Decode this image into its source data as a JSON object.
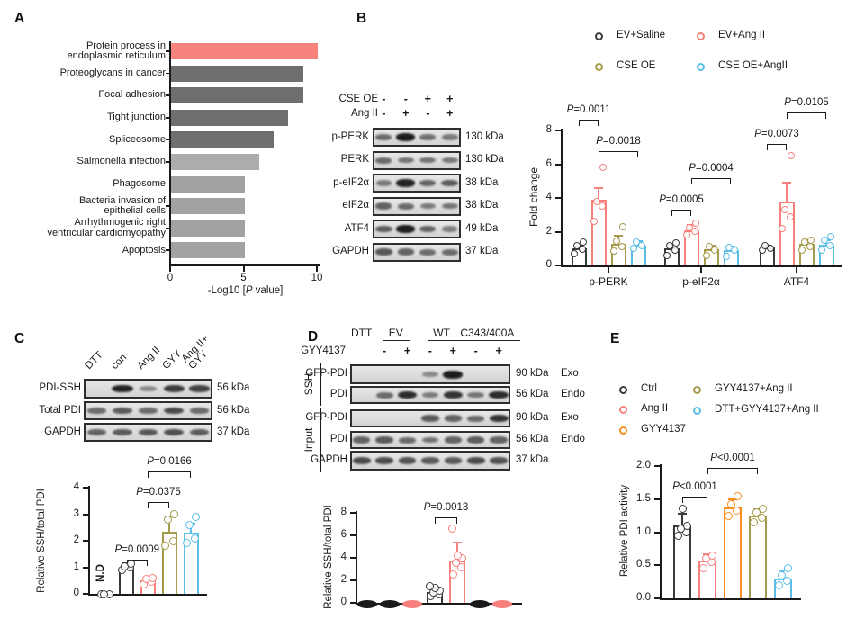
{
  "colors": {
    "black": "#3A3A3A",
    "salmon": "#F8807C",
    "olive": "#A69B4D",
    "blue": "#5ABEE5",
    "orange": "#F78E20",
    "axis": "#1a1a1a",
    "pathway_highlight": "#F8837C",
    "pathway_dark_gray": "#6F6F6F",
    "pathway_light_gray": "#A6A6A6"
  },
  "panel_a": {
    "letter": "A",
    "chart_data": {
      "type": "bar",
      "orientation": "horizontal",
      "title": "",
      "xlabel": "-Log10 [P value]",
      "xticks": [
        0,
        5,
        10
      ],
      "xlim": [
        0,
        10
      ],
      "grid": false,
      "categories": [
        "Protein process in\nendoplasmic reticulum",
        "Proteoglycans in cancer",
        "Focal adhesion",
        "Tight junction",
        "Spliceosome",
        "Salmonella infection",
        "Phagosome",
        "Bacteria invasion of\nepithelial cells",
        "Arrhythmogenic right\nventricular cardiomyopathy",
        "Apoptosis"
      ],
      "values": [
        10,
        9,
        9,
        8,
        7,
        6,
        5,
        5,
        5,
        5
      ],
      "bar_colors": [
        "#F8837C",
        "#6F6F6F",
        "#6F6F6F",
        "#6F6F6F",
        "#6F6F6F",
        "#ACACAC",
        "#A2A2A2",
        "#A2A2A2",
        "#A2A2A2",
        "#A2A2A2"
      ]
    }
  },
  "panel_b": {
    "letter": "B",
    "blot": {
      "treatments": [
        {
          "label": "CSE OE",
          "symbols": [
            "-",
            "-",
            "+",
            "+"
          ]
        },
        {
          "label": "Ang II",
          "symbols": [
            "-",
            "+",
            "-",
            "+"
          ]
        }
      ],
      "rows": [
        {
          "label": "p-PERK",
          "kda": "130 kDa",
          "bands": [
            0.5,
            1,
            0.45,
            0.4
          ]
        },
        {
          "label": "PERK",
          "kda": "130 kDa",
          "bands": [
            0.5,
            0.45,
            0.45,
            0.42
          ]
        },
        {
          "label": "p-eIF2α",
          "kda": "38 kDa",
          "bands": [
            0.4,
            0.95,
            0.55,
            0.6
          ]
        },
        {
          "label": "eIF2α",
          "kda": "38 kDa",
          "bands": [
            0.55,
            0.5,
            0.42,
            0.45
          ]
        },
        {
          "label": "ATF4",
          "kda": "49 kDa",
          "bands": [
            0.6,
            1,
            0.55,
            0.38
          ]
        },
        {
          "label": "GAPDH",
          "kda": "37 kDa",
          "bands": [
            0.62,
            0.55,
            0.5,
            0.5
          ]
        }
      ]
    },
    "legend": [
      {
        "label": "EV+Saline",
        "color": "#3A3A3A"
      },
      {
        "label": "EV+Ang II",
        "color": "#F8807C"
      },
      {
        "label": "CSE OE",
        "color": "#A69B4D"
      },
      {
        "label": "CSE OE+AngII",
        "color": "#5ABEE5"
      }
    ],
    "chart_data": {
      "type": "grouped_bar",
      "ylabel": "Fold change",
      "yticks": [
        0,
        2,
        4,
        6,
        8
      ],
      "ylim": [
        0,
        8
      ],
      "grid": false,
      "legend_position": "top-right",
      "categories": [
        "p-PERK",
        "p-eIF2α",
        "ATF4"
      ],
      "series": [
        {
          "name": "EV+Saline",
          "color": "#3A3A3A",
          "values": [
            1.0,
            1.0,
            1.05
          ],
          "errors": [
            0.2,
            0.25,
            0.1
          ],
          "scatter": [
            [
              0.7,
              0.95,
              1.15,
              1.4
            ],
            [
              0.6,
              0.9,
              1.15,
              1.35
            ],
            [
              0.9,
              1.0,
              1.15
            ]
          ]
        },
        {
          "name": "EV+Ang II",
          "color": "#F8807C",
          "values": [
            3.9,
            2.1,
            3.8
          ],
          "errors": [
            0.7,
            0.3,
            1.1
          ],
          "scatter": [
            [
              2.6,
              3.5,
              3.8,
              5.8
            ],
            [
              1.8,
              2.05,
              2.25,
              2.5
            ],
            [
              2.2,
              2.9,
              3.3,
              6.5
            ]
          ]
        },
        {
          "name": "CSE OE",
          "color": "#A69B4D",
          "values": [
            1.3,
            0.95,
            1.3
          ],
          "errors": [
            0.45,
            0.25,
            0.2
          ],
          "scatter": [
            [
              0.85,
              1.1,
              1.45,
              2.3
            ],
            [
              0.6,
              0.9,
              1.1
            ],
            [
              0.9,
              1.1,
              1.4,
              1.5
            ]
          ]
        },
        {
          "name": "CSE OE+AngII",
          "color": "#5ABEE5",
          "values": [
            1.2,
            0.9,
            1.25
          ],
          "errors": [
            0.25,
            0.2,
            0.25
          ],
          "scatter": [
            [
              1.0,
              1.2,
              1.4
            ],
            [
              0.55,
              0.9,
              1.05
            ],
            [
              0.9,
              1.2,
              1.5,
              1.7
            ]
          ]
        }
      ],
      "pvalues": [
        {
          "label": "P=0.0011",
          "cat": 0,
          "from": 0,
          "to": 1
        },
        {
          "label": "P=0.0018",
          "cat": 0,
          "from": 1,
          "to": 3
        },
        {
          "label": "P=0.0005",
          "cat": 1,
          "from": 0,
          "to": 1
        },
        {
          "label": "P=0.0004",
          "cat": 1,
          "from": 1,
          "to": 3
        },
        {
          "label": "P=0.0073",
          "cat": 2,
          "from": 0,
          "to": 1
        },
        {
          "label": "P=0.0105",
          "cat": 2,
          "from": 1,
          "to": 3
        }
      ]
    }
  },
  "panel_c": {
    "letter": "C",
    "blot": {
      "lane_labels": [
        "DTT",
        "con",
        "Ang II",
        "GYY",
        "Ang II+\nGYY"
      ],
      "rows": [
        {
          "label": "PDI-SSH",
          "kda": "56 kDa",
          "bands": [
            0,
            0.95,
            0.3,
            0.8,
            0.75
          ]
        },
        {
          "label": "Total PDI",
          "kda": "56 kDa",
          "bands": [
            0.5,
            0.6,
            0.5,
            0.72,
            0.5
          ]
        },
        {
          "label": "GAPDH",
          "kda": "37 kDa",
          "bands": [
            0.55,
            0.6,
            0.62,
            0.68,
            0.6
          ]
        }
      ]
    },
    "chart_data": {
      "type": "bar",
      "ylabel": "Relative SSH/total PDI",
      "yticks": [
        0,
        1,
        2,
        3,
        4
      ],
      "ylim": [
        0,
        4
      ],
      "grid": false,
      "categories": [
        "DTT",
        "con",
        "Ang II",
        "GYY",
        "Ang II+GYY"
      ],
      "values": [
        0,
        1.0,
        0.5,
        2.35,
        2.3
      ],
      "errors": [
        0,
        0.15,
        0.1,
        0.55,
        0.35
      ],
      "bar_colors": [
        "#3A3A3A",
        "#3A3A3A",
        "#F8807C",
        "#A69B4D",
        "#5ABEE5"
      ],
      "scatter": [
        [
          0,
          0,
          0
        ],
        [
          0.9,
          1.0,
          1.05,
          1.15
        ],
        [
          0.35,
          0.45,
          0.55,
          0.6
        ],
        [
          1.8,
          2.0,
          2.8,
          3.0
        ],
        [
          1.9,
          2.1,
          2.6,
          2.9
        ]
      ],
      "annotations": [
        {
          "text": "N.D",
          "bar": 0
        }
      ],
      "pvalues": [
        {
          "label": "P=0.0009",
          "from": 1,
          "to": 2
        },
        {
          "label": "P=0.0375",
          "from": 2,
          "to": 3
        },
        {
          "label": "P=0.0166",
          "from": 2,
          "to": 4
        }
      ]
    }
  },
  "panel_d": {
    "letter": "D",
    "blot": {
      "group_headers": [
        {
          "label": "DTT",
          "underline": false
        },
        {
          "label": "EV",
          "underline": true
        },
        {
          "label": "WT",
          "underline": true
        },
        {
          "label": "C343/400A",
          "underline": true
        }
      ],
      "treatment": {
        "label": "GYY4137",
        "symbols": [
          "-",
          "+",
          "-",
          "+",
          "-",
          "+"
        ]
      },
      "side_groups": [
        {
          "label": "SSH",
          "rows": [
            0,
            1
          ]
        },
        {
          "label": "Input",
          "rows": [
            2,
            3,
            4
          ]
        }
      ],
      "rows": [
        {
          "label": "GFP-PDI",
          "kda": "90 kDa",
          "tag": "Exo",
          "bands": [
            0,
            0,
            0,
            0.3,
            1,
            0,
            0
          ]
        },
        {
          "label": "PDI",
          "kda": "56 kDa",
          "tag": "Endo",
          "bands": [
            0,
            0.5,
            0.9,
            0.4,
            0.85,
            0.45,
            0.9
          ]
        },
        {
          "label": "GFP-PDI",
          "kda": "90 kDa",
          "tag": "Exo",
          "bands": [
            0,
            0,
            0,
            0.6,
            0.55,
            0.5,
            0.85
          ]
        },
        {
          "label": "PDI",
          "kda": "56 kDa",
          "tag": "Endo",
          "bands": [
            0.55,
            0.6,
            0.5,
            0.45,
            0.55,
            0.6,
            0.55
          ]
        },
        {
          "label": "GAPDH",
          "kda": "37 kDa",
          "tag": "",
          "bands": [
            0.7,
            0.7,
            0.65,
            0.6,
            0.6,
            0.7,
            0.65
          ]
        }
      ]
    },
    "chart_data": {
      "type": "bar",
      "ylabel": "Relative SSH/total PDI",
      "yticks": [
        0,
        2,
        4,
        6,
        8
      ],
      "ylim": [
        0,
        8
      ],
      "grid": false,
      "categories": [
        "DTT",
        "EV -GYY4137",
        "EV +GYY4137",
        "WT -GYY4137",
        "WT +GYY4137",
        "C343/400A -GYY4137",
        "C343/400A +GYY4137"
      ],
      "values": [
        0,
        0,
        0,
        1.0,
        3.8,
        0,
        0
      ],
      "errors": [
        0,
        0,
        0,
        0.4,
        1.6,
        0,
        0
      ],
      "bar_colors": [
        "#1a1a1a",
        "#1a1a1a",
        "#F8807C",
        "#3A3A3A",
        "#F8807C",
        "#1a1a1a",
        "#F8807C"
      ],
      "zero_marker": [
        true,
        true,
        true,
        false,
        false,
        true,
        true
      ],
      "scatter": [
        [],
        [],
        [],
        [
          0.6,
          0.8,
          0.95,
          1.1,
          1.3,
          1.45
        ],
        [
          2.5,
          3.2,
          3.6,
          4.0,
          4.2,
          6.6
        ],
        [],
        []
      ],
      "pvalues": [
        {
          "label": "P=0.0013",
          "from": 3,
          "to": 4
        }
      ]
    }
  },
  "panel_e": {
    "letter": "E",
    "legend": [
      {
        "label": "Ctrl",
        "color": "#3A3A3A"
      },
      {
        "label": "Ang II",
        "color": "#F8807C"
      },
      {
        "label": "GYY4137",
        "color": "#F78E20"
      },
      {
        "label": "GYY4137+Ang II",
        "color": "#A69B4D"
      },
      {
        "label": "DTT+GYY4137+Ang II",
        "color": "#5ABEE5"
      }
    ],
    "chart_data": {
      "type": "bar",
      "ylabel": "Relative PDI activity",
      "yticks": [
        "0.0",
        "0.5",
        "1.0",
        "1.5",
        "2.0"
      ],
      "ylim": [
        0,
        2
      ],
      "grid": false,
      "categories": [
        "Ctrl",
        "Ang II",
        "GYY4137",
        "GYY4137+Ang II",
        "DTT+GYY4137+Ang II"
      ],
      "values": [
        1.1,
        0.57,
        1.37,
        1.25,
        0.3
      ],
      "errors": [
        0.18,
        0.09,
        0.13,
        0.1,
        0.12
      ],
      "bar_colors": [
        "#3A3A3A",
        "#F8807C",
        "#F78E20",
        "#A69B4D",
        "#5ABEE5"
      ],
      "scatter": [
        [
          0.95,
          1.0,
          1.05,
          1.1,
          1.35
        ],
        [
          0.45,
          0.55,
          0.6,
          0.65
        ],
        [
          1.25,
          1.32,
          1.42,
          1.55
        ],
        [
          1.15,
          1.22,
          1.3,
          1.35
        ],
        [
          0.2,
          0.27,
          0.35,
          0.45
        ]
      ],
      "pvalues": [
        {
          "label": "P<0.0001",
          "from": 0,
          "to": 1
        },
        {
          "label": "P<0.0001",
          "from": 1,
          "to": 3
        }
      ]
    }
  }
}
